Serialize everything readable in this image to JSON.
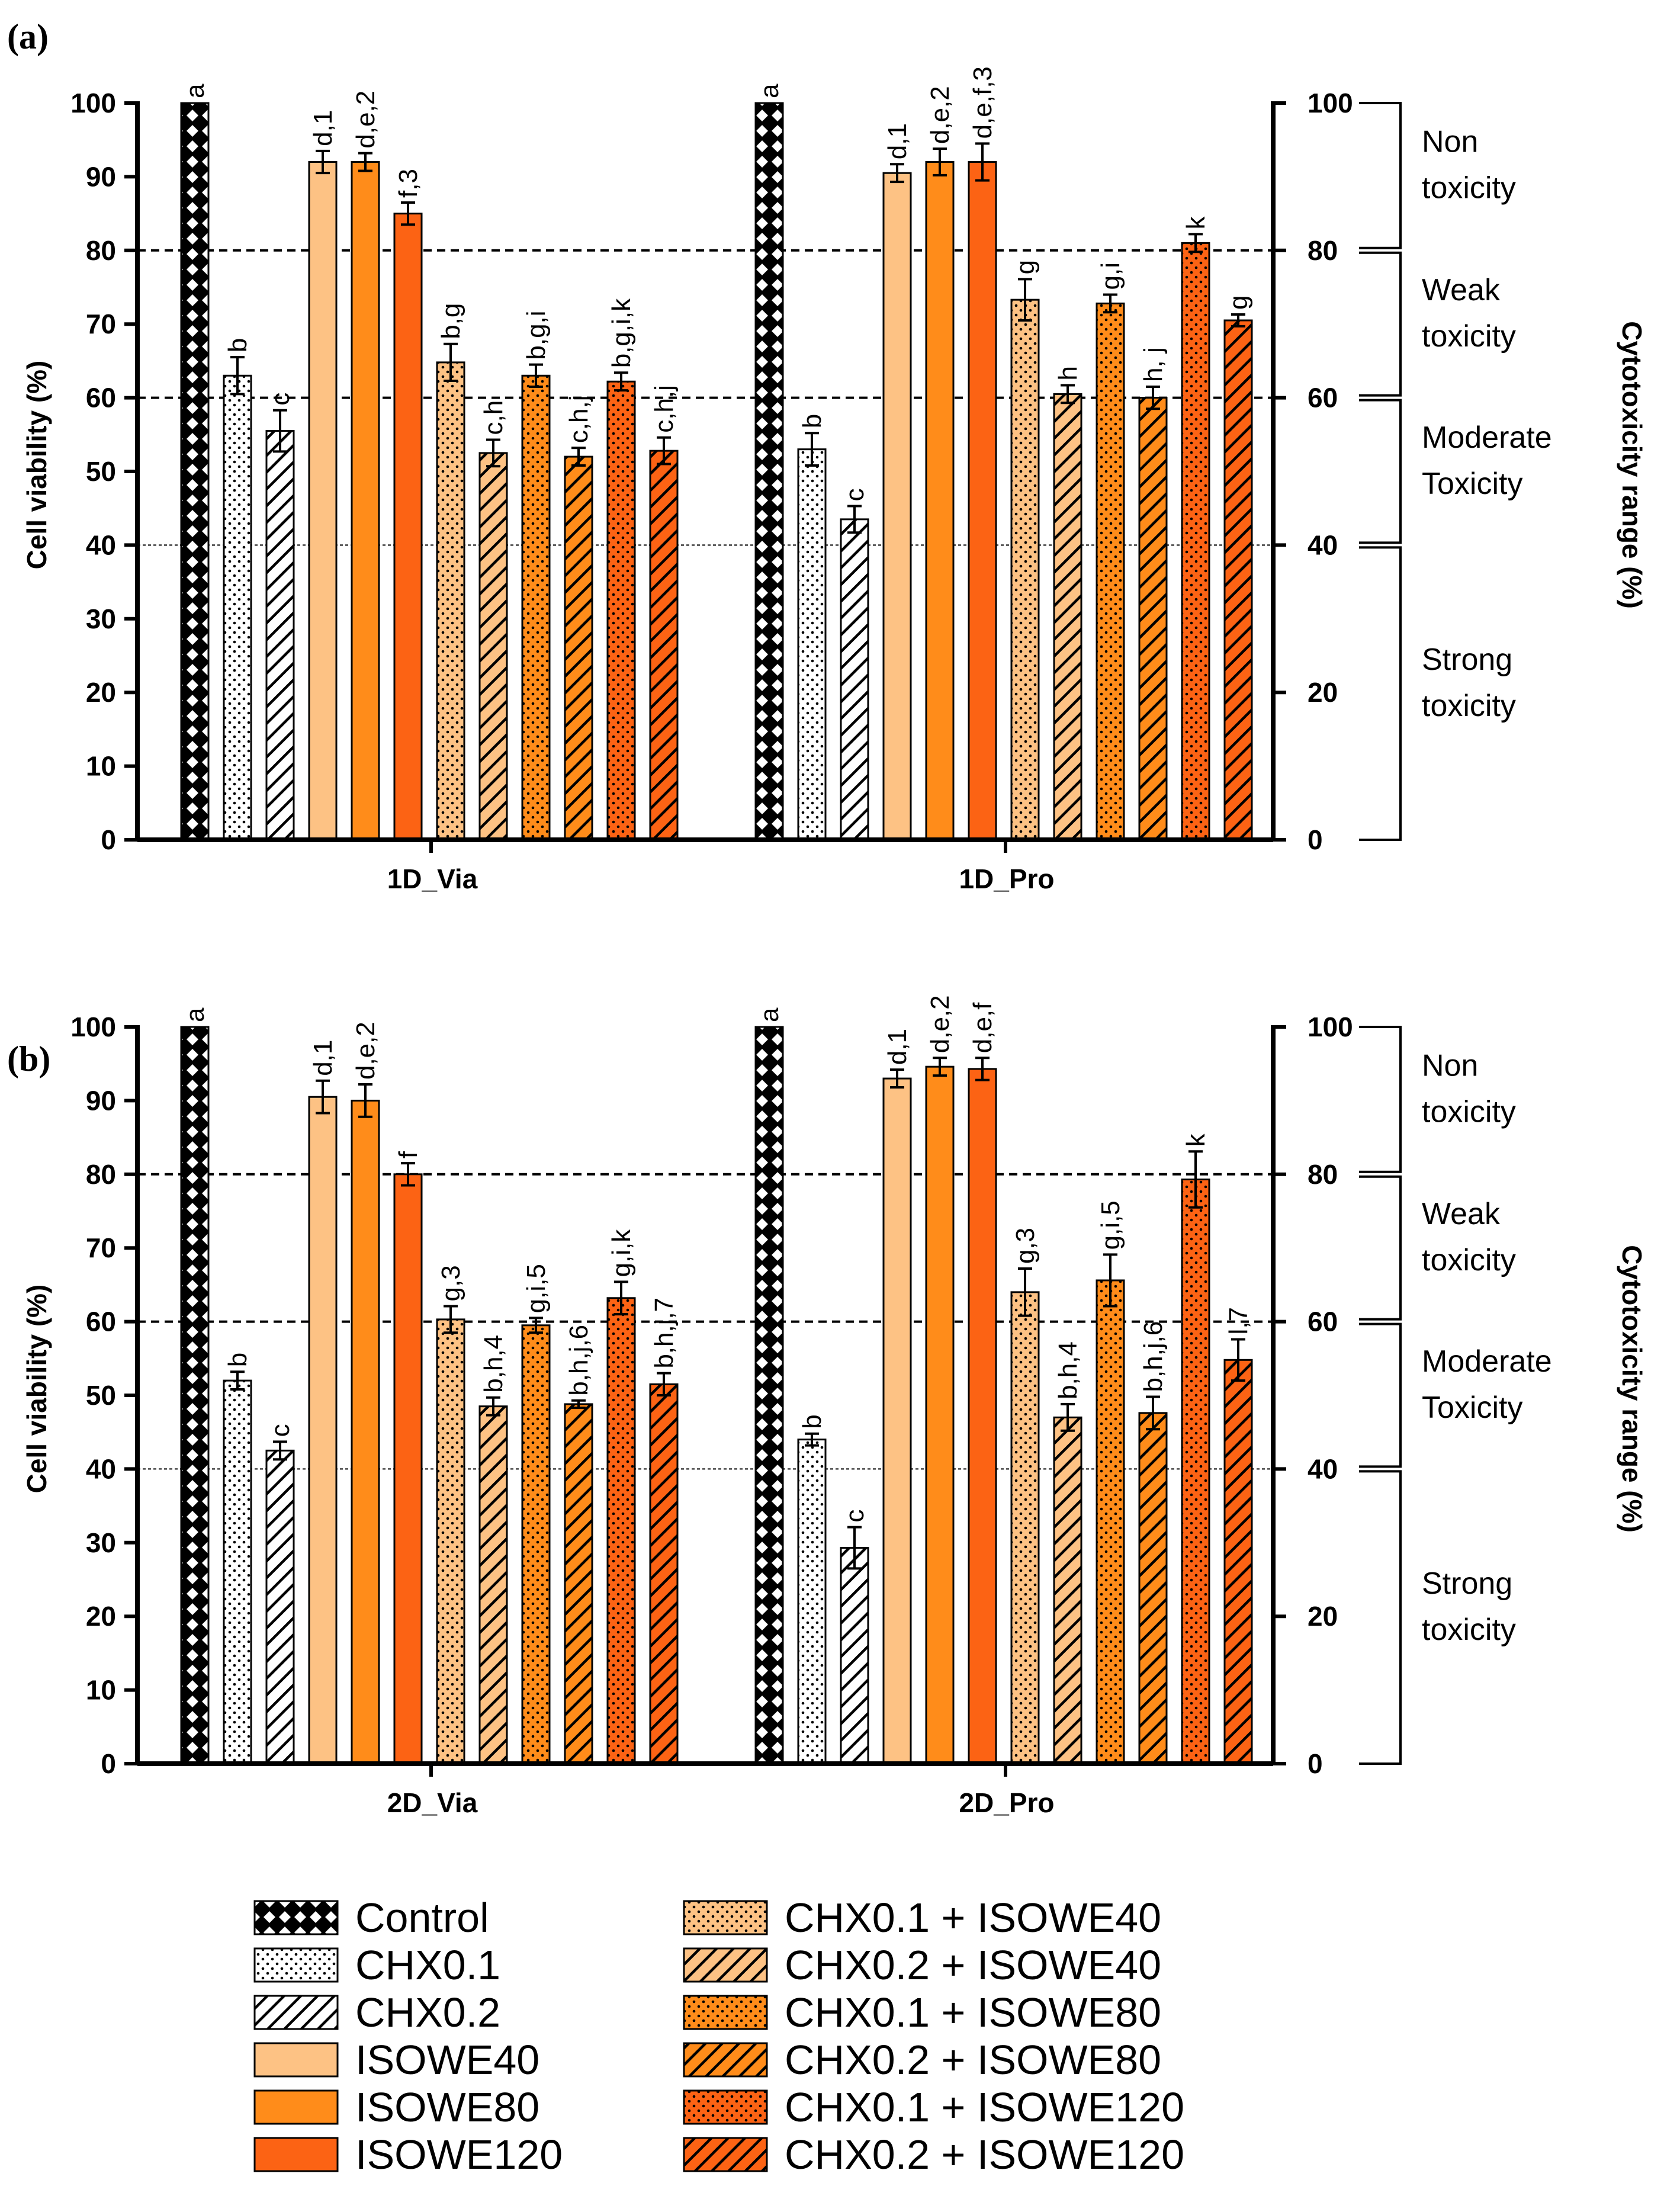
{
  "figure": {
    "panels": [
      {
        "tag": "(a)",
        "groups": [
          "1D_Via",
          "1D_Pro"
        ],
        "left_axis_title": "Cell viability (%)",
        "right_axis_title": "Cytotoxicity range (%)"
      },
      {
        "tag": "(b)",
        "groups": [
          "2D_Via",
          "2D_Pro"
        ],
        "left_axis_title": "Cell viability (%)",
        "right_axis_title": "Cytotoxicity range (%)"
      }
    ],
    "left_ticks": [
      "0",
      "10",
      "20",
      "30",
      "40",
      "50",
      "60",
      "70",
      "80",
      "90",
      "100"
    ],
    "right_ticks": [
      "0",
      "20",
      "40",
      "60",
      "80",
      "100"
    ],
    "toxicity_ranges": [
      {
        "name": "non-toxicity",
        "lines": [
          "Non",
          "toxicity"
        ],
        "from": 80,
        "to": 100
      },
      {
        "name": "weak-toxicity",
        "lines": [
          "Weak",
          "toxicity"
        ],
        "from": 60,
        "to": 80
      },
      {
        "name": "moderate-toxicity",
        "lines": [
          "Moderate",
          "Toxicity"
        ],
        "from": 40,
        "to": 60
      },
      {
        "name": "strong-toxicity",
        "lines": [
          "Strong",
          "toxicity"
        ],
        "from": 0,
        "to": 40
      }
    ],
    "reference_lines": [
      {
        "value": 80,
        "style": "dashed"
      },
      {
        "value": 60,
        "style": "dashed"
      },
      {
        "value": 40,
        "style": "dotted"
      }
    ]
  },
  "treatments": [
    {
      "name": "Control",
      "fill": "#ffffff",
      "pattern": "checker",
      "pattern_color": "#000000"
    },
    {
      "name": "CHX0.1",
      "fill": "#ffffff",
      "pattern": "dots",
      "pattern_color": "#000000"
    },
    {
      "name": "CHX0.2",
      "fill": "#ffffff",
      "pattern": "hatch",
      "pattern_color": "#000000"
    },
    {
      "name": "ISOWE40",
      "fill": "#FDC284",
      "pattern": "none",
      "pattern_color": "#000000"
    },
    {
      "name": "ISOWE80",
      "fill": "#FF8C1A",
      "pattern": "none",
      "pattern_color": "#000000"
    },
    {
      "name": "ISOWE120",
      "fill": "#FC6314",
      "pattern": "none",
      "pattern_color": "#000000"
    },
    {
      "name": "CHX0.1 + ISOWE40",
      "fill": "#FDC284",
      "pattern": "dots",
      "pattern_color": "#000000"
    },
    {
      "name": "CHX0.2 + ISOWE40",
      "fill": "#FDC284",
      "pattern": "hatch",
      "pattern_color": "#000000"
    },
    {
      "name": "CHX0.1 + ISOWE80",
      "fill": "#FF8C1A",
      "pattern": "dots",
      "pattern_color": "#000000"
    },
    {
      "name": "CHX0.2 + ISOWE80",
      "fill": "#FF8C1A",
      "pattern": "hatch",
      "pattern_color": "#000000"
    },
    {
      "name": "CHX0.1 + ISOWE120",
      "fill": "#FC6314",
      "pattern": "dots",
      "pattern_color": "#000000"
    },
    {
      "name": "CHX0.2 + ISOWE120",
      "fill": "#FC6314",
      "pattern": "hatch",
      "pattern_color": "#000000"
    }
  ],
  "chart_data": [
    {
      "type": "bar",
      "panel": "(a)",
      "title": "",
      "xlabel": "",
      "ylabel": "Cell viability (%)",
      "ylabel_right": "Cytotoxicity range (%)",
      "ylim": [
        0,
        100
      ],
      "categories": [
        "1D_Via",
        "1D_Pro"
      ],
      "series": [
        {
          "name": "Control",
          "values": [
            100,
            100
          ],
          "errors": [
            0,
            0
          ],
          "labels": [
            "a",
            "a"
          ]
        },
        {
          "name": "CHX0.1",
          "values": [
            63,
            53
          ],
          "errors": [
            2.5,
            2.2
          ],
          "labels": [
            "b",
            "b"
          ]
        },
        {
          "name": "CHX0.2",
          "values": [
            55.5,
            43.5
          ],
          "errors": [
            2.8,
            1.8
          ],
          "labels": [
            "c",
            "c"
          ]
        },
        {
          "name": "ISOWE40",
          "values": [
            92,
            90.5
          ],
          "errors": [
            1.5,
            1.2
          ],
          "labels": [
            "d,1",
            "d,1"
          ]
        },
        {
          "name": "ISOWE80",
          "values": [
            92,
            92
          ],
          "errors": [
            1.2,
            1.8
          ],
          "labels": [
            "d,e,2",
            "d,e,2"
          ]
        },
        {
          "name": "ISOWE120",
          "values": [
            85,
            92
          ],
          "errors": [
            1.5,
            2.5
          ],
          "labels": [
            "f,3",
            "d,e,f,3"
          ]
        },
        {
          "name": "CHX0.1 + ISOWE40",
          "values": [
            64.8,
            73.3
          ],
          "errors": [
            2.5,
            2.8
          ],
          "labels": [
            "b,g",
            "g"
          ]
        },
        {
          "name": "CHX0.2 + ISOWE40",
          "values": [
            52.5,
            60.5
          ],
          "errors": [
            1.8,
            1.2
          ],
          "labels": [
            "c,h",
            "h"
          ]
        },
        {
          "name": "CHX0.1 + ISOWE80",
          "values": [
            63,
            72.8
          ],
          "errors": [
            1.5,
            1.2
          ],
          "labels": [
            "b,g,i",
            "g,i"
          ]
        },
        {
          "name": "CHX0.2 + ISOWE80",
          "values": [
            52,
            60
          ],
          "errors": [
            1.2,
            1.5
          ],
          "labels": [
            "c,h,j",
            "h, j"
          ]
        },
        {
          "name": "CHX0.1 + ISOWE120",
          "values": [
            62.2,
            81
          ],
          "errors": [
            1.2,
            1.2
          ],
          "labels": [
            "b,g,i,k",
            "k"
          ]
        },
        {
          "name": "CHX0.2 + ISOWE120",
          "values": [
            52.8,
            70.5
          ],
          "errors": [
            1.8,
            0.8
          ],
          "labels": [
            "c,h,j",
            "g"
          ]
        }
      ]
    },
    {
      "type": "bar",
      "panel": "(b)",
      "title": "",
      "xlabel": "",
      "ylabel": "Cell viability (%)",
      "ylabel_right": "Cytotoxicity range (%)",
      "ylim": [
        0,
        100
      ],
      "categories": [
        "2D_Via",
        "2D_Pro"
      ],
      "series": [
        {
          "name": "Control",
          "values": [
            100,
            100
          ],
          "errors": [
            0,
            0
          ],
          "labels": [
            "a",
            "a"
          ]
        },
        {
          "name": "CHX0.1",
          "values": [
            52,
            44
          ],
          "errors": [
            1.2,
            0.8
          ],
          "labels": [
            "b",
            "b"
          ]
        },
        {
          "name": "CHX0.2",
          "values": [
            42.5,
            29.3
          ],
          "errors": [
            1.2,
            2.8
          ],
          "labels": [
            "c",
            "c"
          ]
        },
        {
          "name": "ISOWE40",
          "values": [
            90.5,
            93
          ],
          "errors": [
            2.2,
            1.2
          ],
          "labels": [
            "d,1",
            "d,1"
          ]
        },
        {
          "name": "ISOWE80",
          "values": [
            90,
            94.6
          ],
          "errors": [
            2.2,
            1.2
          ],
          "labels": [
            "d,e,2",
            "d,e,2"
          ]
        },
        {
          "name": "ISOWE120",
          "values": [
            80,
            94.3
          ],
          "errors": [
            1.5,
            1.5
          ],
          "labels": [
            "f",
            "d,e,f"
          ]
        },
        {
          "name": "CHX0.1 + ISOWE40",
          "values": [
            60.3,
            64
          ],
          "errors": [
            1.8,
            3.2
          ],
          "labels": [
            "g,3",
            "g,3"
          ]
        },
        {
          "name": "CHX0.2 + ISOWE40",
          "values": [
            48.5,
            47
          ],
          "errors": [
            1.2,
            1.8
          ],
          "labels": [
            "b,h,4",
            "b,h,4"
          ]
        },
        {
          "name": "CHX0.1 + ISOWE80",
          "values": [
            59.5,
            65.6
          ],
          "errors": [
            1,
            3.5
          ],
          "labels": [
            "g,i,5",
            "g,i,5"
          ]
        },
        {
          "name": "CHX0.2 + ISOWE80",
          "values": [
            48.8,
            47.6
          ],
          "errors": [
            0.5,
            2.2
          ],
          "labels": [
            "b,h,j,6",
            "b,h,j,6"
          ]
        },
        {
          "name": "CHX0.1 + ISOWE120",
          "values": [
            63.2,
            79.3
          ],
          "errors": [
            2.2,
            3.8
          ],
          "labels": [
            "g,i,k",
            "k"
          ]
        },
        {
          "name": "CHX0.2 + ISOWE120",
          "values": [
            51.5,
            54.8
          ],
          "errors": [
            1.5,
            2.8
          ],
          "labels": [
            "b,h,j,7",
            "l,7"
          ]
        }
      ]
    }
  ]
}
